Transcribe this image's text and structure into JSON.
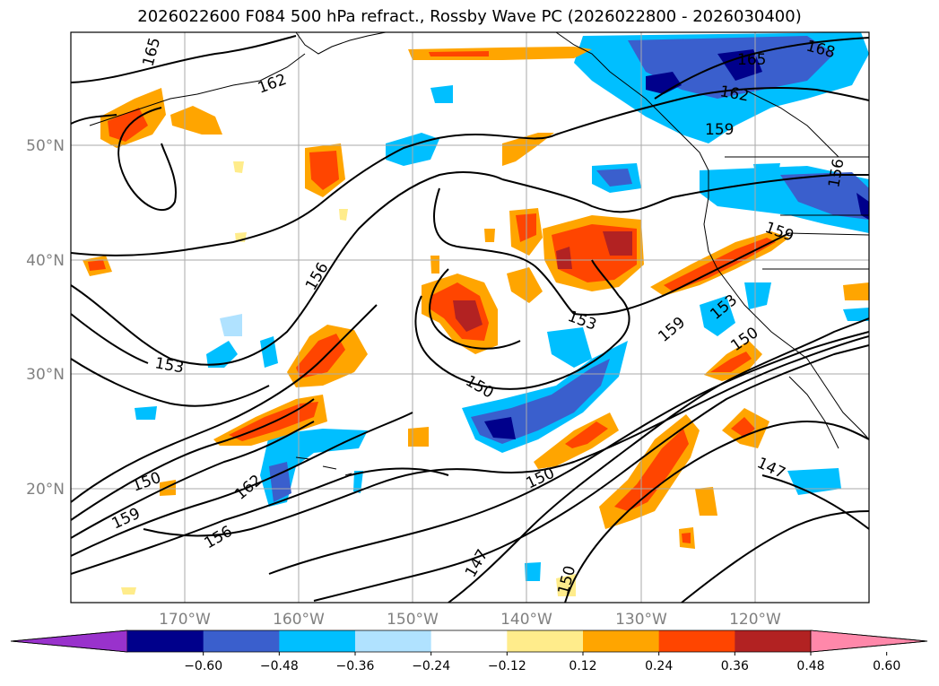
{
  "title": "2026022600 F084 500 hPa refract., Rossby Wave PC (2026022800 - 2026030400)",
  "map": {
    "lat_labels": [
      "50°N",
      "40°N",
      "30°N",
      "20°N"
    ],
    "lon_labels": [
      "170°W",
      "160°W",
      "150°W",
      "140°W",
      "130°W",
      "120°W"
    ],
    "contour_labels": [
      "165",
      "162",
      "168",
      "165",
      "162",
      "159",
      "156",
      "159",
      "156",
      "153",
      "153",
      "150",
      "159",
      "153",
      "150",
      "150",
      "162",
      "159",
      "156",
      "150",
      "147",
      "150",
      "147"
    ]
  },
  "colorbar": {
    "ticks": [
      "−0.60",
      "−0.48",
      "−0.36",
      "−0.24",
      "−0.12",
      "0.12",
      "0.24",
      "0.36",
      "0.48",
      "0.60"
    ],
    "colors": [
      "#9932cc",
      "#00008b",
      "#3a5fcd",
      "#00bfff",
      "#b0e2ff",
      "#ffffff",
      "#ffec8b",
      "#ffa500",
      "#ff4500",
      "#b22222",
      "#ff88aa"
    ]
  }
}
